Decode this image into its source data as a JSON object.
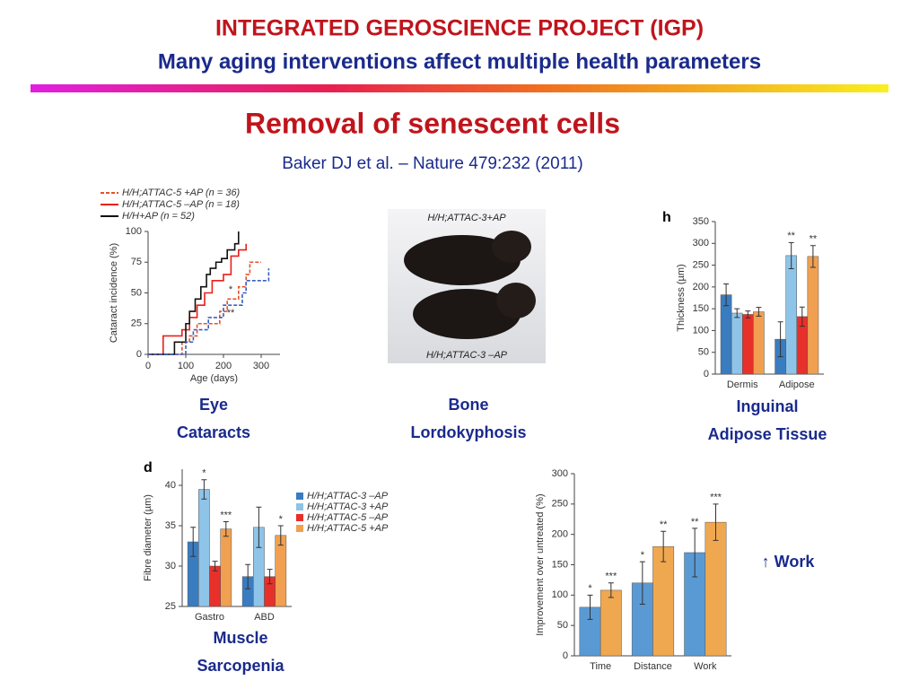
{
  "header": {
    "title": "INTEGRATED GEROSCIENCE PROJECT (IGP)",
    "subtitle": "Many aging interventions affect multiple health parameters"
  },
  "section": {
    "title": "Removal of senescent cells",
    "citation": "Baker DJ et al. – Nature 479:232 (2011)"
  },
  "photo": {
    "labels": [
      "H/H;ATTAC-3+AP",
      "H/H;ATTAC-3 –AP"
    ]
  },
  "captions": [
    [
      "Eye",
      "Cataracts"
    ],
    [
      "Bone",
      "Lordokyphosis"
    ],
    [
      "Inguinal",
      "Adipose Tissue"
    ],
    [
      "Muscle",
      "Sarcopenia"
    ]
  ],
  "work_note": "↑ Work",
  "chart_data": [
    {
      "type": "line",
      "xlabel": "Age (days)",
      "ylabel": "Cataract incidence (%)",
      "xlim": [
        0,
        350
      ],
      "xticks": [
        0,
        100,
        200,
        300
      ],
      "ylim": [
        0,
        100
      ],
      "yticks": [
        0,
        25,
        50,
        75,
        100
      ],
      "annotations": [
        "*",
        "**"
      ],
      "series": [
        {
          "name": "H/H;ATTAC-5 +AP (n = 36)",
          "color": "#e8502a",
          "dashed": true,
          "x": [
            0,
            90,
            110,
            130,
            150,
            190,
            210,
            240,
            260,
            270,
            300
          ],
          "values": [
            0,
            10,
            15,
            25,
            25,
            35,
            45,
            55,
            65,
            75,
            75
          ]
        },
        {
          "name": "H/H;ATTAC-5 –AP (n = 18)",
          "color": "#e8201a",
          "dashed": false,
          "x": [
            0,
            40,
            70,
            90,
            110,
            130,
            150,
            170,
            200,
            220,
            240,
            260
          ],
          "values": [
            0,
            15,
            15,
            20,
            30,
            40,
            50,
            60,
            65,
            80,
            85,
            90
          ]
        },
        {
          "name": "H/H+AP (n = 52)",
          "color": "#111111",
          "dashed": false,
          "x": [
            0,
            70,
            100,
            110,
            125,
            140,
            155,
            165,
            180,
            195,
            210,
            230,
            240
          ],
          "values": [
            0,
            10,
            25,
            35,
            45,
            55,
            65,
            70,
            75,
            78,
            85,
            90,
            100
          ]
        },
        {
          "color": "#3a5fc0",
          "dashed": true,
          "x": [
            0,
            100,
            120,
            160,
            200,
            240,
            250,
            260,
            320
          ],
          "values": [
            0,
            10,
            20,
            30,
            40,
            40,
            50,
            60,
            70
          ]
        }
      ]
    },
    {
      "type": "bar",
      "letter": "h",
      "ylabel": "Thickness (µm)",
      "categories": [
        "Dermis",
        "Adipose"
      ],
      "ylim": [
        0,
        350
      ],
      "yticks": [
        0,
        50,
        100,
        150,
        200,
        250,
        300,
        350
      ],
      "series": [
        {
          "color": "#3a7cc0",
          "values": [
            182,
            80
          ],
          "errors": [
            25,
            40
          ],
          "significance": [
            null,
            null
          ]
        },
        {
          "color": "#8ec4e8",
          "values": [
            140,
            272
          ],
          "errors": [
            10,
            30
          ],
          "significance": [
            null,
            "**"
          ]
        },
        {
          "color": "#e8302a",
          "values": [
            137,
            132
          ],
          "errors": [
            8,
            22
          ],
          "significance": [
            null,
            null
          ]
        },
        {
          "color": "#f0a050",
          "values": [
            143,
            270
          ],
          "errors": [
            10,
            25
          ],
          "significance": [
            null,
            "**"
          ]
        }
      ]
    },
    {
      "type": "bar",
      "letter": "d",
      "ylabel": "Fibre diameter (µm)",
      "categories": [
        "Gastro",
        "ABD"
      ],
      "ylim": [
        25,
        42
      ],
      "yticks": [
        25,
        30,
        35,
        40
      ],
      "series": [
        {
          "name": "H/H;ATTAC-3 –AP",
          "color": "#3a7cc0",
          "values": [
            33,
            28.7
          ],
          "errors": [
            1.8,
            1.5
          ],
          "significance": [
            null,
            null
          ]
        },
        {
          "name": "H/H;ATTAC-3 +AP",
          "color": "#8ec4e8",
          "values": [
            39.5,
            34.8
          ],
          "errors": [
            1.2,
            2.5
          ],
          "significance": [
            "*",
            null
          ]
        },
        {
          "name": "H/H;ATTAC-5 –AP",
          "color": "#e8302a",
          "values": [
            30,
            28.7
          ],
          "errors": [
            0.6,
            0.9
          ],
          "significance": [
            null,
            null
          ]
        },
        {
          "name": "H/H;ATTAC-5 +AP",
          "color": "#f0a050",
          "values": [
            34.6,
            33.8
          ],
          "errors": [
            0.9,
            1.2
          ],
          "significance": [
            "***",
            "*"
          ]
        }
      ]
    },
    {
      "type": "bar",
      "ylabel": "Improvement over untreated (%)",
      "categories": [
        "Time",
        "Distance",
        "Work"
      ],
      "ylim": [
        0,
        300
      ],
      "yticks": [
        0,
        50,
        100,
        150,
        200,
        250,
        300
      ],
      "series": [
        {
          "color": "#5a9ad4",
          "values": [
            80,
            120,
            170
          ],
          "errors": [
            20,
            35,
            40
          ],
          "significance": [
            "*",
            "*",
            "**"
          ]
        },
        {
          "color": "#f0a850",
          "values": [
            108,
            180,
            220
          ],
          "errors": [
            12,
            25,
            30
          ],
          "significance": [
            "***",
            "**",
            "***"
          ]
        }
      ]
    }
  ]
}
